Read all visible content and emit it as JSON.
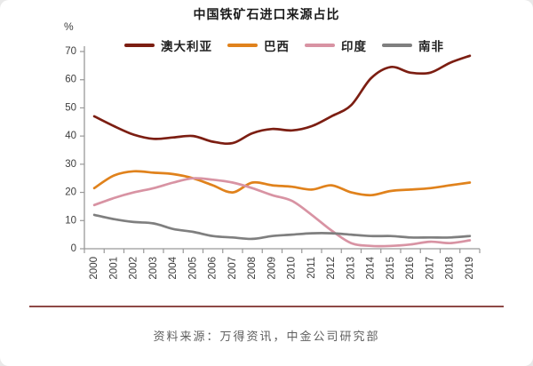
{
  "title": "中国铁矿石进口来源占比",
  "y_unit_label": "%",
  "source_note": "资料来源：万得资讯，中金公司研究部",
  "colors": {
    "axis": "#999999",
    "tick_text": "#3d3d3d",
    "divider": "#8e4946",
    "australia": "#7c1e12",
    "brazil": "#e0821c",
    "india": "#d893a3",
    "south_africa": "#7f7f7f"
  },
  "chart_data": {
    "type": "line",
    "title": "中国铁矿石进口来源占比",
    "xlabel": "",
    "ylabel": "%",
    "ylim": [
      0,
      70
    ],
    "yticks": [
      0,
      10,
      20,
      30,
      40,
      50,
      60,
      70
    ],
    "grid": false,
    "legend_position": "top",
    "categories": [
      "2000",
      "2001",
      "2002",
      "2003",
      "2004",
      "2005",
      "2006",
      "2007",
      "2008",
      "2009",
      "2010",
      "2011",
      "2012",
      "2013",
      "2014",
      "2015",
      "2016",
      "2017",
      "2018",
      "2019"
    ],
    "series": [
      {
        "name": "澳大利亚",
        "color": "#7c1e12",
        "values": [
          47,
          43.5,
          40.5,
          39,
          39.5,
          40,
          38,
          37.5,
          41,
          42.5,
          42,
          43.5,
          47,
          51,
          60.5,
          64.5,
          62.5,
          62.5,
          66,
          68.5
        ]
      },
      {
        "name": "巴西",
        "color": "#e0821c",
        "values": [
          21.5,
          26,
          27.5,
          27,
          26.5,
          25,
          22.5,
          20,
          23.5,
          22.5,
          22,
          21,
          22.5,
          20,
          19,
          20.5,
          21,
          21.5,
          22.5,
          23.5
        ]
      },
      {
        "name": "印度",
        "color": "#d893a3",
        "values": [
          15.5,
          18,
          20,
          21.5,
          23.5,
          25,
          24.5,
          23.5,
          21.5,
          19,
          17,
          12,
          6.5,
          2,
          1,
          1,
          1.5,
          2.5,
          2,
          3
        ]
      },
      {
        "name": "南非",
        "color": "#7f7f7f",
        "values": [
          12,
          10.5,
          9.5,
          9,
          7,
          6,
          4.5,
          4,
          3.5,
          4.5,
          5,
          5.5,
          5.5,
          5,
          4.5,
          4.5,
          4,
          4,
          4,
          4.5
        ]
      }
    ]
  }
}
